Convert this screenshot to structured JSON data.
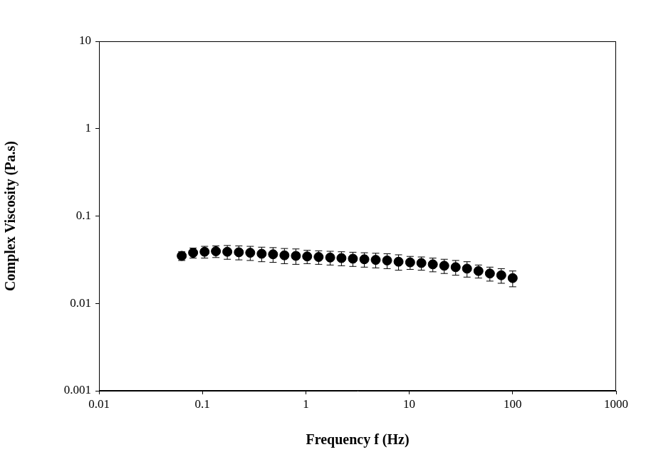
{
  "chart_data": {
    "type": "scatter",
    "x_label": "Frequency f (Hz)",
    "y_label": "Complex Viscosity (Pa.s)",
    "x": [
      0.0631,
      0.0813,
      0.105,
      0.135,
      0.174,
      0.225,
      0.29,
      0.374,
      0.482,
      0.621,
      0.801,
      1.03,
      1.33,
      1.72,
      2.21,
      2.85,
      3.68,
      4.74,
      6.11,
      7.88,
      10.2,
      13.1,
      16.9,
      21.8,
      28.1,
      36.2,
      46.7,
      60.2,
      77.6,
      100
    ],
    "values": [
      0.035,
      0.038,
      0.039,
      0.0395,
      0.039,
      0.0385,
      0.038,
      0.037,
      0.0365,
      0.0355,
      0.035,
      0.0345,
      0.034,
      0.0335,
      0.033,
      0.0325,
      0.032,
      0.0315,
      0.031,
      0.03,
      0.0295,
      0.029,
      0.028,
      0.027,
      0.026,
      0.025,
      0.0235,
      0.022,
      0.021,
      0.0195
    ],
    "errors": [
      0.004,
      0.005,
      0.006,
      0.006,
      0.007,
      0.007,
      0.007,
      0.007,
      0.007,
      0.007,
      0.007,
      0.006,
      0.006,
      0.006,
      0.006,
      0.006,
      0.006,
      0.006,
      0.006,
      0.006,
      0.005,
      0.005,
      0.005,
      0.005,
      0.005,
      0.005,
      0.004,
      0.004,
      0.004,
      0.004
    ],
    "color": "#000000",
    "marker": "circle",
    "log": true,
    "grid": false,
    "xlim": [
      0.01,
      1000
    ],
    "xticks": [
      0.01,
      0.1,
      1,
      10,
      100,
      1000
    ],
    "ylim": [
      0.001,
      10
    ],
    "yticks": [
      0.001,
      0.01,
      0.1,
      1,
      10
    ]
  }
}
